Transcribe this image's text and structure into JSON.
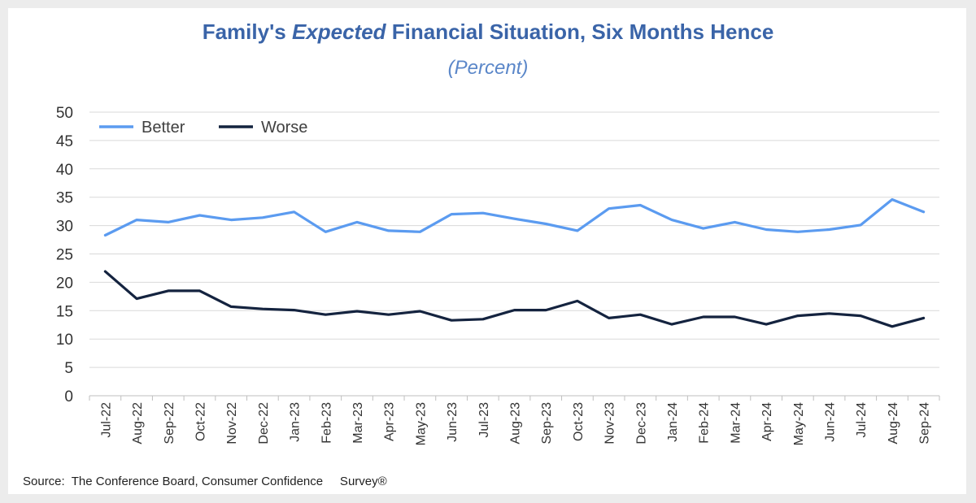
{
  "title": {
    "part1": "Family's ",
    "part2": "Expected",
    "part3": " Financial Situation, Six Months Hence"
  },
  "subtitle": "(Percent)",
  "source": "Source:  The Conference Board, Consumer Confidence     Survey®",
  "colors": {
    "better": "#5b9bf0",
    "worse": "#14233f",
    "title": "#3a64a8",
    "grid": "#d9d9d9"
  },
  "chart_data": {
    "type": "line",
    "title": "Family's Expected Financial Situation, Six Months Hence",
    "subtitle": "(Percent)",
    "xlabel": "",
    "ylabel": "",
    "ylim": [
      0,
      50
    ],
    "yticks": [
      0,
      5,
      10,
      15,
      20,
      25,
      30,
      35,
      40,
      45,
      50
    ],
    "grid": "horizontal",
    "legend_position": "top-left",
    "categories": [
      "Jul-22",
      "Aug-22",
      "Sep-22",
      "Oct-22",
      "Nov-22",
      "Dec-22",
      "Jan-23",
      "Feb-23",
      "Mar-23",
      "Apr-23",
      "May-23",
      "Jun-23",
      "Jul-23",
      "Aug-23",
      "Sep-23",
      "Oct-23",
      "Nov-23",
      "Dec-23",
      "Jan-24",
      "Feb-24",
      "Mar-24",
      "Apr-24",
      "May-24",
      "Jun-24",
      "Jul-24",
      "Aug-24",
      "Sep-24"
    ],
    "series": [
      {
        "name": "Better",
        "color": "#5b9bf0",
        "values": [
          28.3,
          31.0,
          30.6,
          31.8,
          31.0,
          31.4,
          32.4,
          28.9,
          30.6,
          29.1,
          28.9,
          32.0,
          32.2,
          31.2,
          30.3,
          29.1,
          33.0,
          33.6,
          31.0,
          29.5,
          30.6,
          29.3,
          28.9,
          29.3,
          30.1,
          34.6,
          32.4
        ]
      },
      {
        "name": "Worse",
        "color": "#14233f",
        "values": [
          21.9,
          17.1,
          18.5,
          18.5,
          15.7,
          15.3,
          15.1,
          14.3,
          14.9,
          14.3,
          14.9,
          13.3,
          13.5,
          15.1,
          15.1,
          16.7,
          13.7,
          14.3,
          12.6,
          13.9,
          13.9,
          12.6,
          14.1,
          14.5,
          14.1,
          12.2,
          13.7
        ]
      }
    ]
  }
}
